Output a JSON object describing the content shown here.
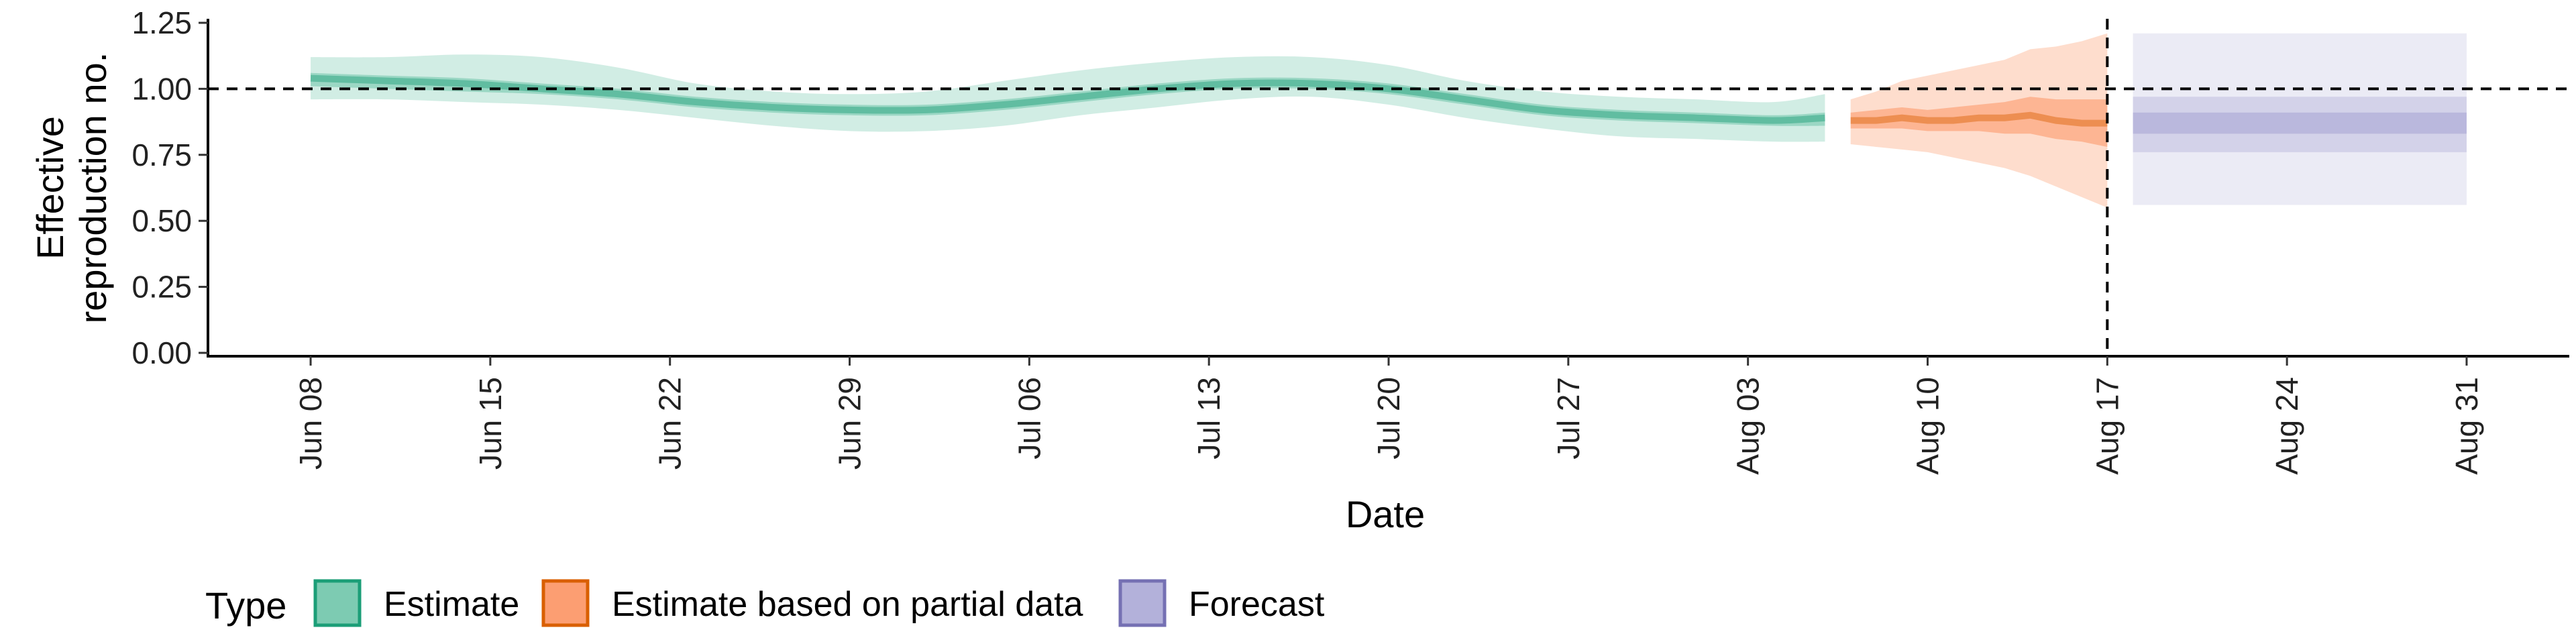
{
  "chart_data": {
    "type": "area",
    "xlabel": "Date",
    "ylabel_lines": [
      "Effective",
      "reproduction no."
    ],
    "ylim": [
      0,
      1.25
    ],
    "yticks": [
      0,
      0.25,
      0.5,
      0.75,
      1.0,
      1.25
    ],
    "ytick_labels": [
      "0.00",
      "0.25",
      "0.50",
      "0.75",
      "1.00",
      "1.25"
    ],
    "xlim": [
      "2020-06-04",
      "2020-09-04"
    ],
    "xticks": [
      "2020-06-08",
      "2020-06-15",
      "2020-06-22",
      "2020-06-29",
      "2020-07-06",
      "2020-07-13",
      "2020-07-20",
      "2020-07-27",
      "2020-08-03",
      "2020-08-10",
      "2020-08-17",
      "2020-08-24",
      "2020-08-31"
    ],
    "xtick_labels": [
      "Jun 08",
      "Jun 15",
      "Jun 22",
      "Jun 29",
      "Jul 06",
      "Jul 13",
      "Jul 20",
      "Jul 27",
      "Aug 03",
      "Aug 10",
      "Aug 17",
      "Aug 24",
      "Aug 31"
    ],
    "reference_hline": 1.0,
    "reference_vline": "2020-08-17",
    "grid": false,
    "legend_position": "bottom-left",
    "legend_title": "Type",
    "series": [
      {
        "name": "Estimate",
        "color": "#1b9e77",
        "fill": "#66c2a4",
        "dates": [
          "2020-06-08",
          "2020-06-11",
          "2020-06-14",
          "2020-06-17",
          "2020-06-20",
          "2020-06-23",
          "2020-06-26",
          "2020-06-29",
          "2020-07-02",
          "2020-07-05",
          "2020-07-08",
          "2020-07-11",
          "2020-07-14",
          "2020-07-17",
          "2020-07-20",
          "2020-07-23",
          "2020-07-26",
          "2020-07-29",
          "2020-08-01",
          "2020-08-04",
          "2020-08-06"
        ],
        "median": [
          1.04,
          1.03,
          1.02,
          1.0,
          0.98,
          0.95,
          0.93,
          0.92,
          0.92,
          0.94,
          0.97,
          1.0,
          1.02,
          1.02,
          1.0,
          0.96,
          0.92,
          0.9,
          0.89,
          0.88,
          0.89
        ],
        "lower_50": [
          1.01,
          1.0,
          0.99,
          0.98,
          0.96,
          0.93,
          0.91,
          0.9,
          0.9,
          0.92,
          0.95,
          0.98,
          1.0,
          1.0,
          0.98,
          0.94,
          0.9,
          0.88,
          0.87,
          0.86,
          0.86
        ],
        "upper_50": [
          1.06,
          1.05,
          1.04,
          1.02,
          1.0,
          0.97,
          0.95,
          0.94,
          0.94,
          0.96,
          0.99,
          1.02,
          1.04,
          1.04,
          1.02,
          0.98,
          0.94,
          0.92,
          0.91,
          0.9,
          0.91
        ],
        "lower_90": [
          0.96,
          0.96,
          0.95,
          0.94,
          0.92,
          0.89,
          0.86,
          0.84,
          0.84,
          0.86,
          0.9,
          0.93,
          0.96,
          0.97,
          0.94,
          0.89,
          0.85,
          0.82,
          0.81,
          0.8,
          0.8
        ],
        "upper_90": [
          1.12,
          1.12,
          1.13,
          1.12,
          1.08,
          1.02,
          0.99,
          0.98,
          0.99,
          1.03,
          1.07,
          1.1,
          1.12,
          1.12,
          1.09,
          1.03,
          0.99,
          0.97,
          0.96,
          0.95,
          0.98
        ]
      },
      {
        "name": "Estimate based on partial data",
        "color": "#d95f02",
        "fill": "#fc8d59",
        "dates": [
          "2020-08-07",
          "2020-08-08",
          "2020-08-09",
          "2020-08-10",
          "2020-08-11",
          "2020-08-12",
          "2020-08-13",
          "2020-08-14",
          "2020-08-15",
          "2020-08-16",
          "2020-08-17"
        ],
        "median": [
          0.88,
          0.88,
          0.89,
          0.88,
          0.88,
          0.89,
          0.89,
          0.9,
          0.88,
          0.87,
          0.87
        ],
        "lower_50": [
          0.85,
          0.85,
          0.85,
          0.84,
          0.84,
          0.84,
          0.83,
          0.83,
          0.81,
          0.8,
          0.78
        ],
        "upper_50": [
          0.91,
          0.92,
          0.93,
          0.92,
          0.93,
          0.94,
          0.95,
          0.97,
          0.96,
          0.96,
          0.96
        ],
        "lower_90": [
          0.79,
          0.78,
          0.77,
          0.76,
          0.74,
          0.72,
          0.7,
          0.67,
          0.63,
          0.59,
          0.55
        ],
        "upper_90": [
          0.96,
          0.99,
          1.03,
          1.05,
          1.07,
          1.09,
          1.11,
          1.15,
          1.16,
          1.18,
          1.21
        ]
      },
      {
        "name": "Forecast",
        "color": "#7570b3",
        "fill": "#a6a3d3",
        "dates": [
          "2020-08-18",
          "2020-08-31"
        ],
        "median": [
          0.87,
          0.87
        ],
        "lower_50": [
          0.83,
          0.83
        ],
        "upper_50": [
          0.91,
          0.91
        ],
        "lower_90_mid": [
          0.76,
          0.76
        ],
        "upper_90_mid": [
          0.97,
          0.97
        ],
        "lower_90": [
          0.56,
          0.56
        ],
        "upper_90": [
          1.21,
          1.21
        ]
      }
    ]
  }
}
